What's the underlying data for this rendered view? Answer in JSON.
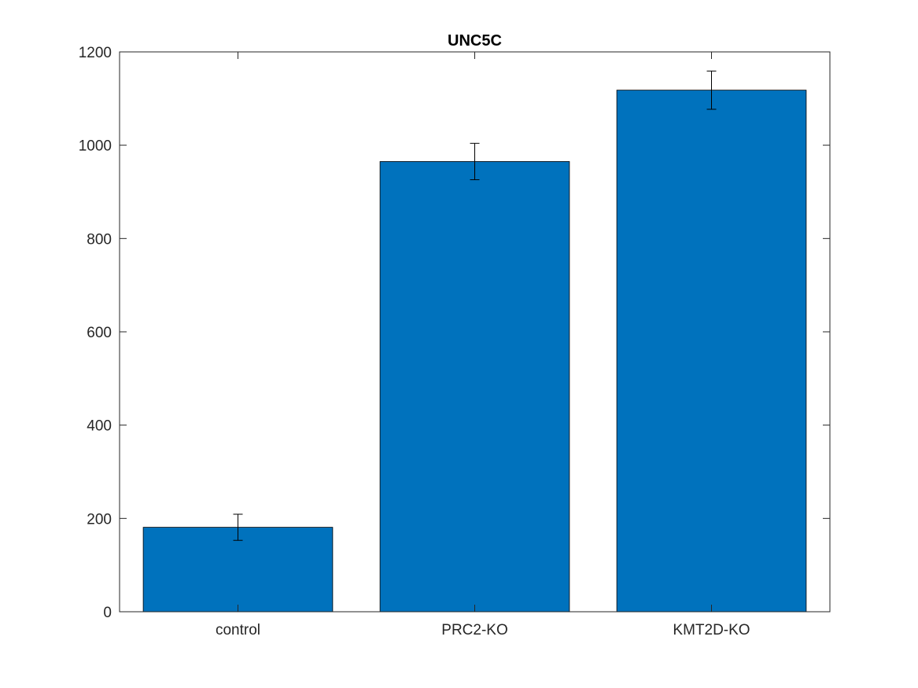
{
  "chart_data": {
    "type": "bar",
    "title": "UNC5C",
    "xlabel": "",
    "ylabel": "",
    "categories": [
      "control",
      "PRC2-KO",
      "KMT2D-KO"
    ],
    "values": [
      181,
      965,
      1118
    ],
    "error": [
      28,
      39,
      41
    ],
    "ylim": [
      0,
      1200
    ],
    "yticks": [
      0,
      200,
      400,
      600,
      800,
      1000,
      1200
    ],
    "ytick_labels": [
      "0",
      "200",
      "400",
      "600",
      "800",
      "1000",
      "1200"
    ],
    "grid": false,
    "bar_color": "#0072BD",
    "edge_color": "#000000"
  }
}
